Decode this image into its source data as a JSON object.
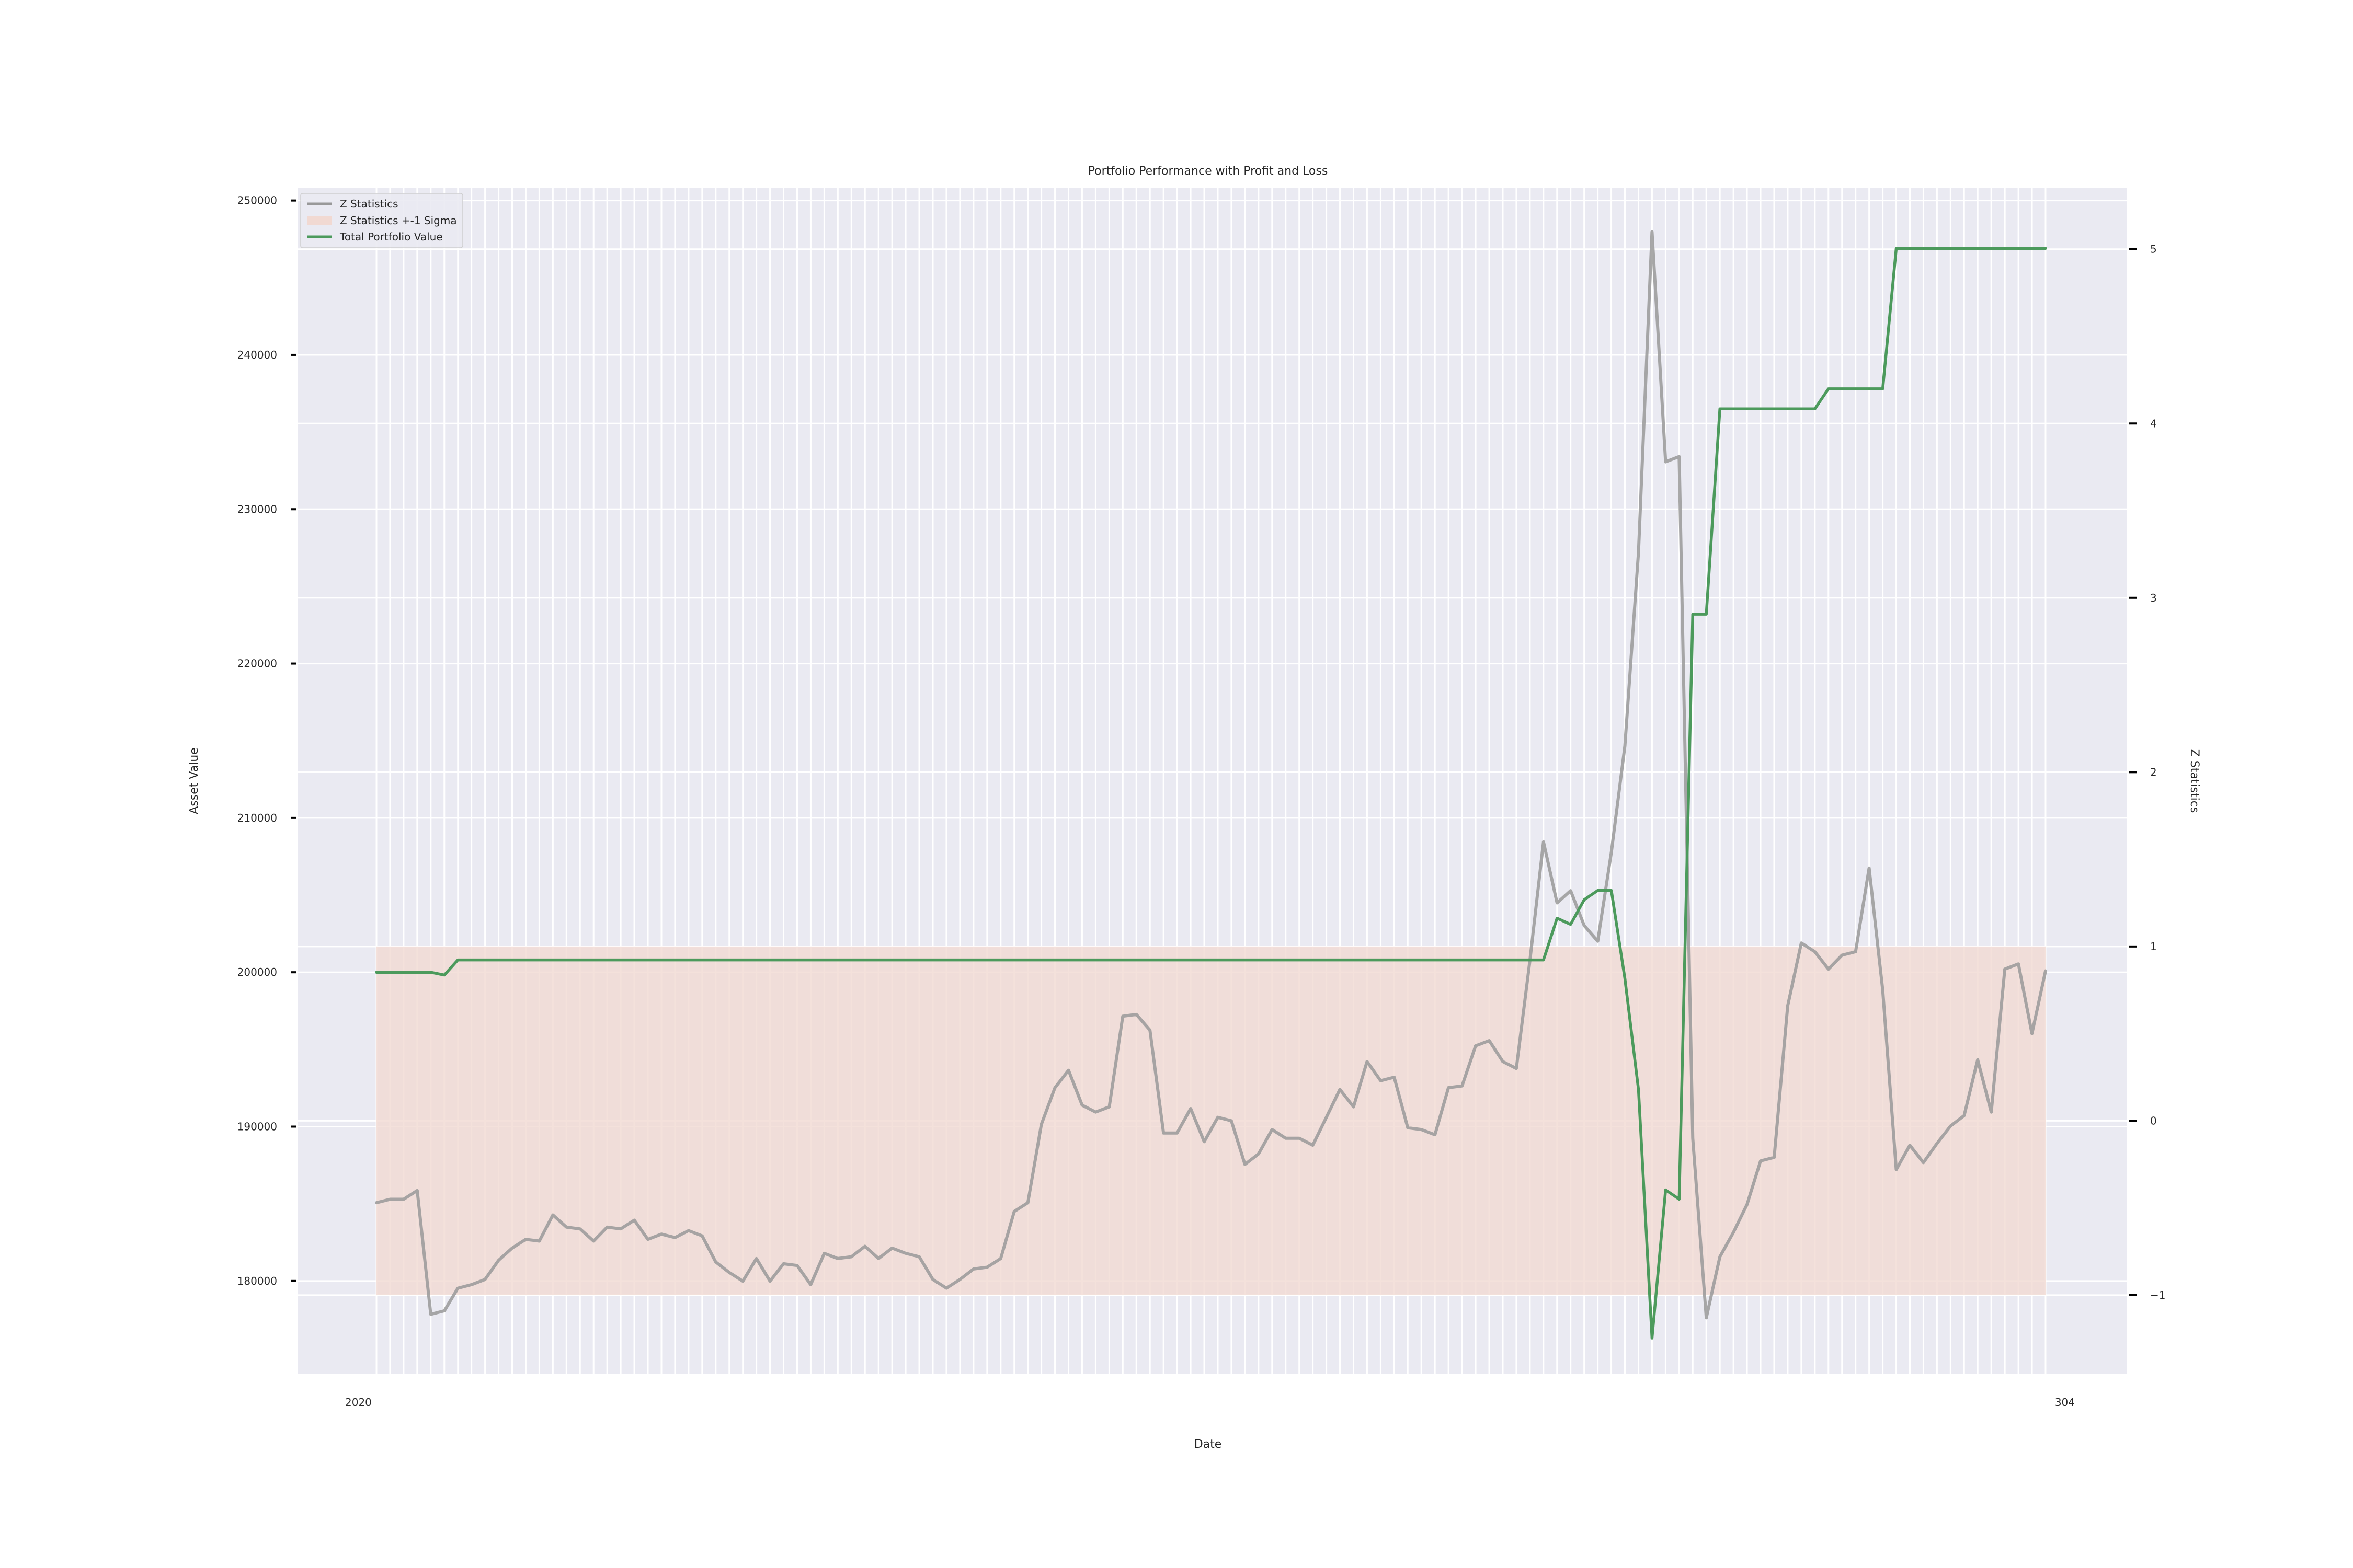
{
  "chart_data": {
    "type": "line",
    "title": "Portfolio Performance with Profit and Loss",
    "xlabel": "Date",
    "ylabel": "Asset Value",
    "y2label": "Z Statistics",
    "ylim": [
      174000,
      250800
    ],
    "y2lim": [
      -1.45,
      5.35
    ],
    "yticks": [
      180000,
      190000,
      200000,
      210000,
      220000,
      230000,
      240000,
      250000
    ],
    "y2ticks": [
      "−1",
      "0",
      "1",
      "2",
      "3",
      "4",
      "5"
    ],
    "y2tick_values": [
      -1,
      0,
      1,
      2,
      3,
      4,
      5
    ],
    "grid": true,
    "legend_position": "upper-left",
    "x_tick_text_left": "2020",
    "x_tick_text_right": "304",
    "num_points": 124,
    "sigma_band": {
      "name": "Z Statistics +-1 Sigma",
      "lower": -1,
      "upper": 1,
      "color": "#f1d9d2"
    },
    "series": [
      {
        "name": "Z Statistics",
        "axis": "right",
        "color": "#999999",
        "values": [
          -0.47,
          -0.45,
          -0.45,
          -0.4,
          -1.11,
          -1.09,
          -0.96,
          -0.94,
          -0.91,
          -0.8,
          -0.73,
          -0.68,
          -0.69,
          -0.54,
          -0.61,
          -0.62,
          -0.69,
          -0.61,
          -0.62,
          -0.57,
          -0.68,
          -0.65,
          -0.67,
          -0.63,
          -0.66,
          -0.81,
          -0.87,
          -0.92,
          -0.79,
          -0.92,
          -0.82,
          -0.83,
          -0.94,
          -0.76,
          -0.79,
          -0.78,
          -0.72,
          -0.79,
          -0.73,
          -0.76,
          -0.78,
          -0.91,
          -0.96,
          -0.91,
          -0.85,
          -0.84,
          -0.79,
          -0.52,
          -0.47,
          -0.02,
          0.19,
          0.29,
          0.09,
          0.05,
          0.08,
          0.6,
          0.61,
          0.52,
          -0.07,
          -0.07,
          0.07,
          -0.12,
          0.02,
          0.0,
          -0.25,
          -0.19,
          -0.05,
          -0.1,
          -0.1,
          -0.14,
          0.02,
          0.18,
          0.08,
          0.34,
          0.23,
          0.25,
          -0.04,
          -0.05,
          -0.08,
          0.19,
          0.2,
          0.43,
          0.46,
          0.34,
          0.3,
          0.92,
          1.6,
          1.25,
          1.32,
          1.12,
          1.03,
          1.54,
          2.15,
          3.26,
          5.1,
          3.78,
          3.81,
          -0.1,
          -1.13,
          -0.78,
          -0.64,
          -0.48,
          -0.23,
          -0.21,
          0.66,
          1.02,
          0.97,
          0.87,
          0.95,
          0.97,
          1.45,
          0.75,
          -0.28,
          -0.14,
          -0.24,
          -0.13,
          -0.03,
          0.03,
          0.35,
          0.05,
          0.87,
          0.9,
          0.5,
          0.86
        ]
      },
      {
        "name": "Total Portfolio Value",
        "axis": "left",
        "color": "#4c9a5c",
        "values": [
          200000,
          200000,
          200000,
          200000,
          200000,
          199820,
          200800,
          200800,
          200800,
          200800,
          200800,
          200800,
          200800,
          200800,
          200800,
          200800,
          200800,
          200800,
          200800,
          200800,
          200800,
          200800,
          200800,
          200800,
          200800,
          200800,
          200800,
          200800,
          200800,
          200800,
          200800,
          200800,
          200800,
          200800,
          200800,
          200800,
          200800,
          200800,
          200800,
          200800,
          200800,
          200800,
          200800,
          200800,
          200800,
          200800,
          200800,
          200800,
          200800,
          200800,
          200800,
          200800,
          200800,
          200800,
          200800,
          200800,
          200800,
          200800,
          200800,
          200800,
          200800,
          200800,
          200800,
          200800,
          200800,
          200800,
          200800,
          200800,
          200800,
          200800,
          200800,
          200800,
          200800,
          200800,
          200800,
          200800,
          200800,
          200800,
          200800,
          200800,
          200800,
          200800,
          200800,
          200800,
          200800,
          200800,
          200800,
          203500,
          203100,
          204700,
          205300,
          205300,
          199600,
          192400,
          176300,
          185900,
          185300,
          223200,
          223200,
          236500,
          236500,
          236500,
          236500,
          236500,
          236500,
          236500,
          236500,
          237800,
          237800,
          237800,
          237800,
          237800,
          246900,
          246900,
          246900,
          246900,
          246900,
          246900,
          246900,
          246900,
          246900,
          246900,
          246900,
          246900
        ]
      }
    ]
  }
}
